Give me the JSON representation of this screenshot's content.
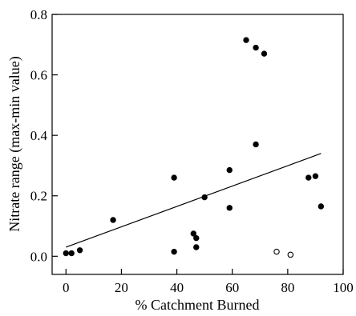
{
  "chart_data": {
    "type": "scatter",
    "title": "",
    "xlabel": "% Catchment Burned",
    "ylabel": "Nitrate range (max-min value)",
    "xlim": [
      -5,
      100
    ],
    "ylim": [
      -0.06,
      0.8
    ],
    "x_ticks": [
      0,
      20,
      40,
      60,
      80,
      100
    ],
    "x_tick_labels": [
      "0",
      "20",
      "40",
      "60",
      "80",
      "100"
    ],
    "y_ticks": [
      0.0,
      0.2,
      0.4,
      0.6,
      0.8
    ],
    "y_tick_labels": [
      "0.0",
      "0.2",
      "0.4",
      "0.6",
      "0.8"
    ],
    "grid": false,
    "legend": "none",
    "series": [
      {
        "marker": "filled-circle",
        "color": "#000000",
        "points": [
          {
            "x": 0,
            "y": 0.01
          },
          {
            "x": 2,
            "y": 0.01
          },
          {
            "x": 5,
            "y": 0.02
          },
          {
            "x": 17,
            "y": 0.12
          },
          {
            "x": 39,
            "y": 0.015
          },
          {
            "x": 39,
            "y": 0.26
          },
          {
            "x": 46,
            "y": 0.075
          },
          {
            "x": 47,
            "y": 0.06
          },
          {
            "x": 47,
            "y": 0.03
          },
          {
            "x": 50,
            "y": 0.195
          },
          {
            "x": 59,
            "y": 0.16
          },
          {
            "x": 59,
            "y": 0.285
          },
          {
            "x": 65,
            "y": 0.715
          },
          {
            "x": 68.5,
            "y": 0.69
          },
          {
            "x": 68.5,
            "y": 0.37
          },
          {
            "x": 71.5,
            "y": 0.67
          },
          {
            "x": 87.5,
            "y": 0.26
          },
          {
            "x": 90,
            "y": 0.265
          },
          {
            "x": 92,
            "y": 0.165
          }
        ]
      },
      {
        "marker": "open-circle",
        "color": "#000000",
        "points": [
          {
            "x": 76,
            "y": 0.015
          },
          {
            "x": 81,
            "y": 0.005
          }
        ]
      }
    ],
    "trendline": {
      "x": [
        0,
        92
      ],
      "y": [
        0.03,
        0.34
      ]
    }
  }
}
